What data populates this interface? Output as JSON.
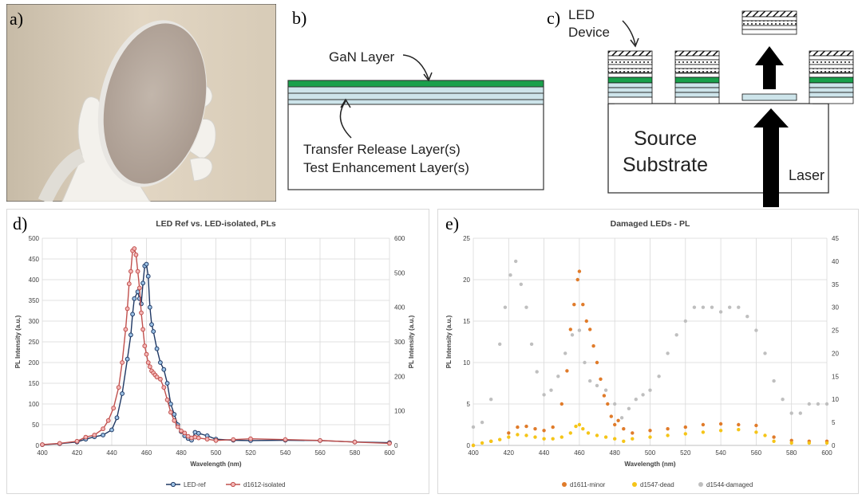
{
  "figure": {
    "panel_a": {
      "letter": "a)"
    },
    "panel_b": {
      "letter": "b)",
      "gan_label": "GaN Layer",
      "release_label": "Transfer Release Layer(s)",
      "test_label": "Test Enhancement Layer(s)"
    },
    "panel_c": {
      "letter": "c)",
      "led_label_line1": "LED",
      "led_label_line2": "Device",
      "source_line1": "Source",
      "source_line2": "Substrate",
      "laser_label": "Laser"
    },
    "panel_d": {
      "letter": "d)"
    },
    "panel_e": {
      "letter": "e)"
    }
  },
  "colors": {
    "gan_green": "#19a04b",
    "layer_blue": "#cde4ea",
    "led_ref": "#2e6fb0",
    "led_ref_line": "#1f3864",
    "isolated": "#c0504d",
    "minor": "#e07b2a",
    "dead": "#f5c518",
    "damaged": "#bfbfbf"
  },
  "chart_data": [
    {
      "type": "line",
      "title": "LED Ref vs. LED-isolated, PLs",
      "xlabel": "Wavelength (nm)",
      "ylabel": "PL Intensity (a.u.)",
      "ylabel_right": "PL Intensity (a.u.)",
      "xlim": [
        400,
        600
      ],
      "ylim": [
        0,
        500
      ],
      "ylim_right": [
        0,
        600
      ],
      "x_ticks": [
        "400",
        "420",
        "440",
        "460",
        "480",
        "500",
        "520",
        "540",
        "560",
        "580",
        "600"
      ],
      "y_ticks": [
        "0",
        "50",
        "100",
        "150",
        "200",
        "250",
        "300",
        "350",
        "400",
        "450",
        "500"
      ],
      "y_ticks_right": [
        "0",
        "100",
        "200",
        "300",
        "400",
        "500",
        "600"
      ],
      "legend_position": "bottom",
      "series": [
        {
          "name": "LED-ref",
          "axis": "right",
          "x": [
            400,
            410,
            420,
            425,
            430,
            435,
            440,
            443,
            446,
            449,
            451,
            452,
            453,
            455,
            456,
            457,
            458,
            459,
            460,
            461,
            462,
            463,
            464,
            466,
            468,
            470,
            472,
            474,
            476,
            478,
            480,
            482,
            484,
            486,
            488,
            490,
            495,
            500,
            510,
            520,
            540,
            560,
            580,
            600
          ],
          "y": [
            2,
            5,
            10,
            18,
            25,
            30,
            45,
            80,
            150,
            250,
            320,
            380,
            425,
            445,
            425,
            410,
            470,
            520,
            525,
            490,
            400,
            350,
            330,
            280,
            240,
            220,
            180,
            120,
            90,
            60,
            40,
            28,
            20,
            15,
            38,
            35,
            28,
            18,
            15,
            14,
            15,
            14,
            10,
            8
          ]
        },
        {
          "name": "d1612-isolated",
          "axis": "left",
          "x": [
            400,
            410,
            420,
            425,
            430,
            435,
            438,
            441,
            444,
            446,
            448,
            449,
            450,
            451,
            452,
            453,
            454,
            455,
            456,
            457,
            458,
            459,
            460,
            461,
            462,
            463,
            464,
            465,
            466,
            468,
            470,
            472,
            474,
            476,
            478,
            480,
            482,
            484,
            486,
            488,
            490,
            495,
            500,
            510,
            520,
            540,
            560,
            580,
            600
          ],
          "y": [
            2,
            5,
            10,
            20,
            25,
            40,
            60,
            90,
            140,
            200,
            280,
            330,
            390,
            420,
            470,
            475,
            460,
            420,
            380,
            320,
            280,
            240,
            220,
            200,
            190,
            180,
            175,
            170,
            165,
            160,
            140,
            110,
            80,
            60,
            45,
            35,
            30,
            22,
            18,
            20,
            18,
            15,
            12,
            14,
            16,
            14,
            12,
            8,
            5
          ]
        }
      ]
    },
    {
      "type": "scatter",
      "title": "Damaged LEDs - PL",
      "xlabel": "Wavelength (nm)",
      "ylabel": "PL Intensity (a.u.)",
      "xlim": [
        400,
        600
      ],
      "ylim": [
        0,
        25
      ],
      "ylim_right": [
        0,
        45
      ],
      "x_ticks": [
        "400",
        "420",
        "440",
        "460",
        "480",
        "500",
        "520",
        "540",
        "560",
        "580",
        "600"
      ],
      "y_ticks": [
        "0",
        "5",
        "10",
        "15",
        "20",
        "25"
      ],
      "y_ticks_right": [
        "0",
        "5",
        "10",
        "15",
        "20",
        "25",
        "30",
        "35",
        "40",
        "45"
      ],
      "legend_position": "bottom",
      "series": [
        {
          "name": "d1611-minor",
          "axis": "left",
          "x": [
            400,
            410,
            420,
            425,
            430,
            435,
            440,
            445,
            450,
            453,
            455,
            457,
            459,
            460,
            462,
            464,
            466,
            468,
            470,
            472,
            474,
            476,
            478,
            480,
            482,
            485,
            490,
            500,
            510,
            520,
            530,
            540,
            550,
            560,
            570,
            580,
            590,
            600
          ],
          "y": [
            0,
            0.5,
            1.5,
            2.2,
            2.3,
            2,
            1.8,
            2.2,
            5,
            9,
            14,
            17,
            20,
            21,
            17,
            15,
            14,
            12,
            10,
            8,
            6,
            5,
            3.5,
            2.5,
            3,
            2,
            1.5,
            1.8,
            2,
            2.2,
            2.5,
            2.6,
            2.5,
            2.4,
            1,
            0.6,
            0.5,
            0.5
          ]
        },
        {
          "name": "d1547-dead",
          "axis": "left",
          "x": [
            400,
            405,
            410,
            415,
            420,
            425,
            430,
            435,
            440,
            445,
            450,
            455,
            458,
            460,
            462,
            465,
            470,
            475,
            480,
            485,
            490,
            500,
            510,
            520,
            530,
            540,
            550,
            560,
            565,
            570,
            580,
            590,
            600
          ],
          "y": [
            0,
            0.3,
            0.5,
            0.7,
            1,
            1.3,
            1.2,
            1,
            0.8,
            0.8,
            1,
            1.5,
            2.3,
            2.5,
            2,
            1.5,
            1.2,
            1,
            0.8,
            0.5,
            0.8,
            1,
            1.2,
            1.4,
            1.6,
            1.8,
            1.9,
            1.6,
            1.2,
            0.5,
            0.3,
            0.3,
            0.3
          ]
        },
        {
          "name": "d1544-damaged",
          "axis": "right",
          "x": [
            400,
            405,
            410,
            415,
            418,
            421,
            424,
            427,
            430,
            433,
            436,
            440,
            444,
            448,
            452,
            456,
            460,
            463,
            466,
            470,
            475,
            480,
            484,
            488,
            492,
            496,
            500,
            505,
            510,
            515,
            520,
            525,
            530,
            535,
            540,
            545,
            550,
            555,
            560,
            565,
            570,
            575,
            580,
            585,
            590,
            595,
            600
          ],
          "y": [
            4,
            5,
            10,
            22,
            30,
            37,
            40,
            35,
            30,
            22,
            16,
            11,
            12,
            15,
            20,
            24,
            25,
            18,
            14,
            13,
            12,
            9,
            6,
            8,
            10,
            11,
            12,
            15,
            20,
            24,
            27,
            30,
            30,
            30,
            29,
            30,
            30,
            28,
            25,
            20,
            14,
            10,
            7,
            7,
            9,
            9,
            9
          ]
        }
      ]
    }
  ]
}
